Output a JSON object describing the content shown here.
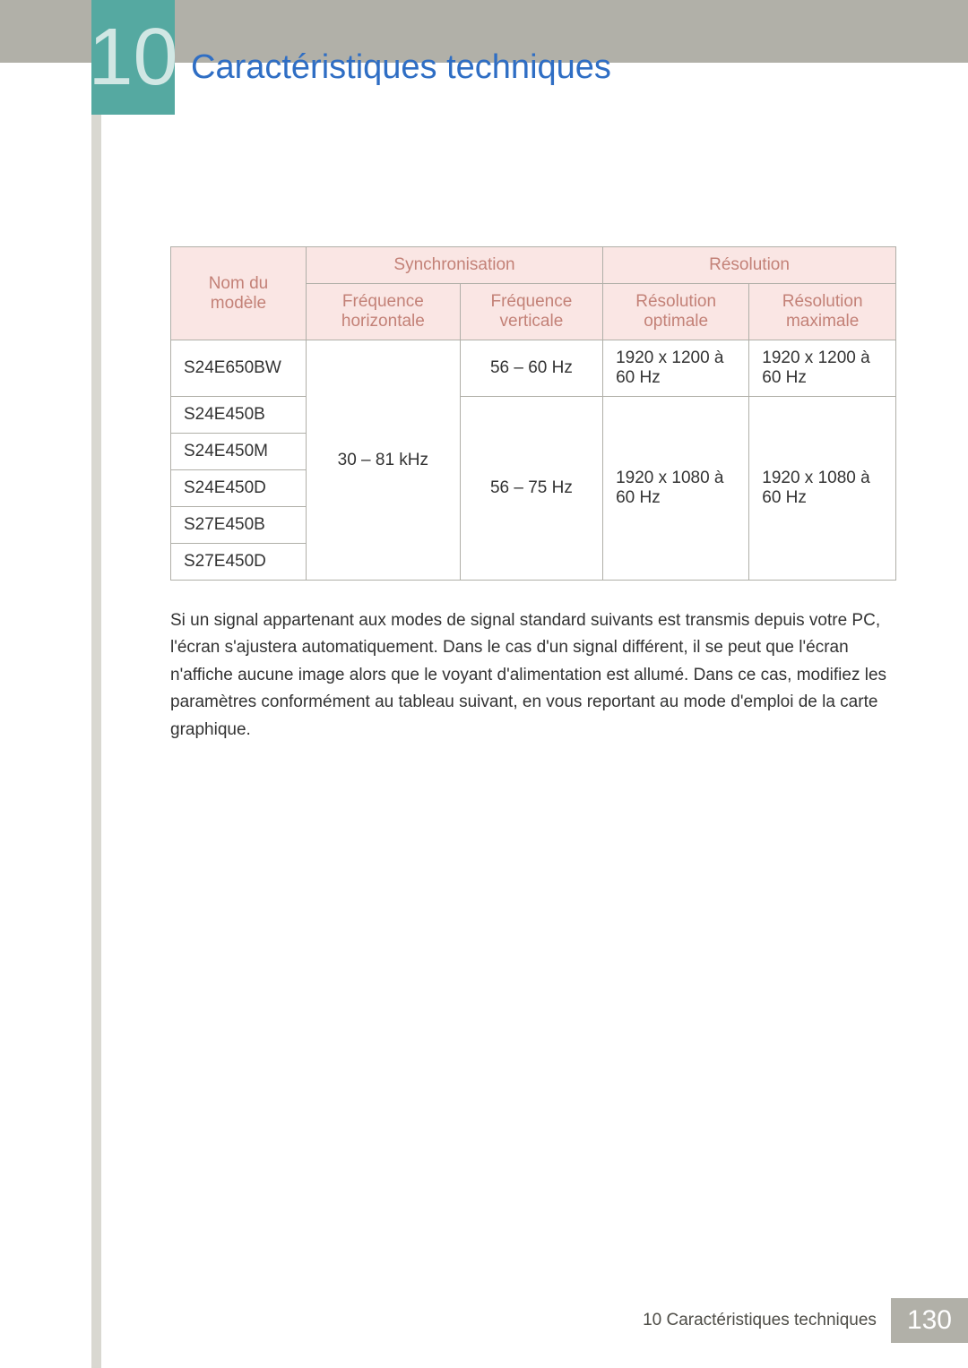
{
  "chapter_number": "10",
  "page_title": "Caractéristiques techniques",
  "colors": {
    "header_band": "#b1b0a8",
    "chapter_tab_bg": "#55a9a1",
    "chapter_tab_text": "#d1e7e4",
    "title_text": "#2f6ec4",
    "table_header_bg": "#fae6e4",
    "table_header_text": "#c38177",
    "table_border": "#b0afa8",
    "side_strip": "#d9d8d1",
    "footer_bg": "#b1b0a8",
    "footer_text": "#4e4d47",
    "page_number_text": "#ffffff"
  },
  "table": {
    "headers": {
      "model_name": "Nom du modèle",
      "sync": "Synchronisation",
      "resolution": "Résolution",
      "freq_horizontal": "Fréquence horizontale",
      "freq_vertical": "Fréquence verticale",
      "res_optimal": "Résolution optimale",
      "res_max": "Résolution maximale"
    },
    "models": [
      "S24E650BW",
      "S24E450B",
      "S24E450M",
      "S24E450D",
      "S27E450B",
      "S27E450D"
    ],
    "freq_h_all": "30 – 81 kHz",
    "freq_v_row1": "56 – 60 Hz",
    "freq_v_rest": "56 – 75 Hz",
    "res_opt_row1": "1920 x 1200 à 60 Hz",
    "res_max_row1": "1920 x 1200 à 60 Hz",
    "res_opt_rest": "1920 x 1080 à 60 Hz",
    "res_max_rest": "1920 x 1080 à 60 Hz"
  },
  "paragraph": "Si un signal appartenant aux modes de signal standard suivants est transmis depuis votre PC, l'écran s'ajustera automatiquement. Dans le cas d'un signal différent, il se peut que l'écran n'affiche aucune image alors que le voyant d'alimentation est allumé. Dans ce cas, modifiez les paramètres conformément au tableau suivant, en vous reportant au mode d'emploi de la carte graphique.",
  "footer": {
    "text": "10 Caractéristiques techniques",
    "page_number": "130"
  }
}
